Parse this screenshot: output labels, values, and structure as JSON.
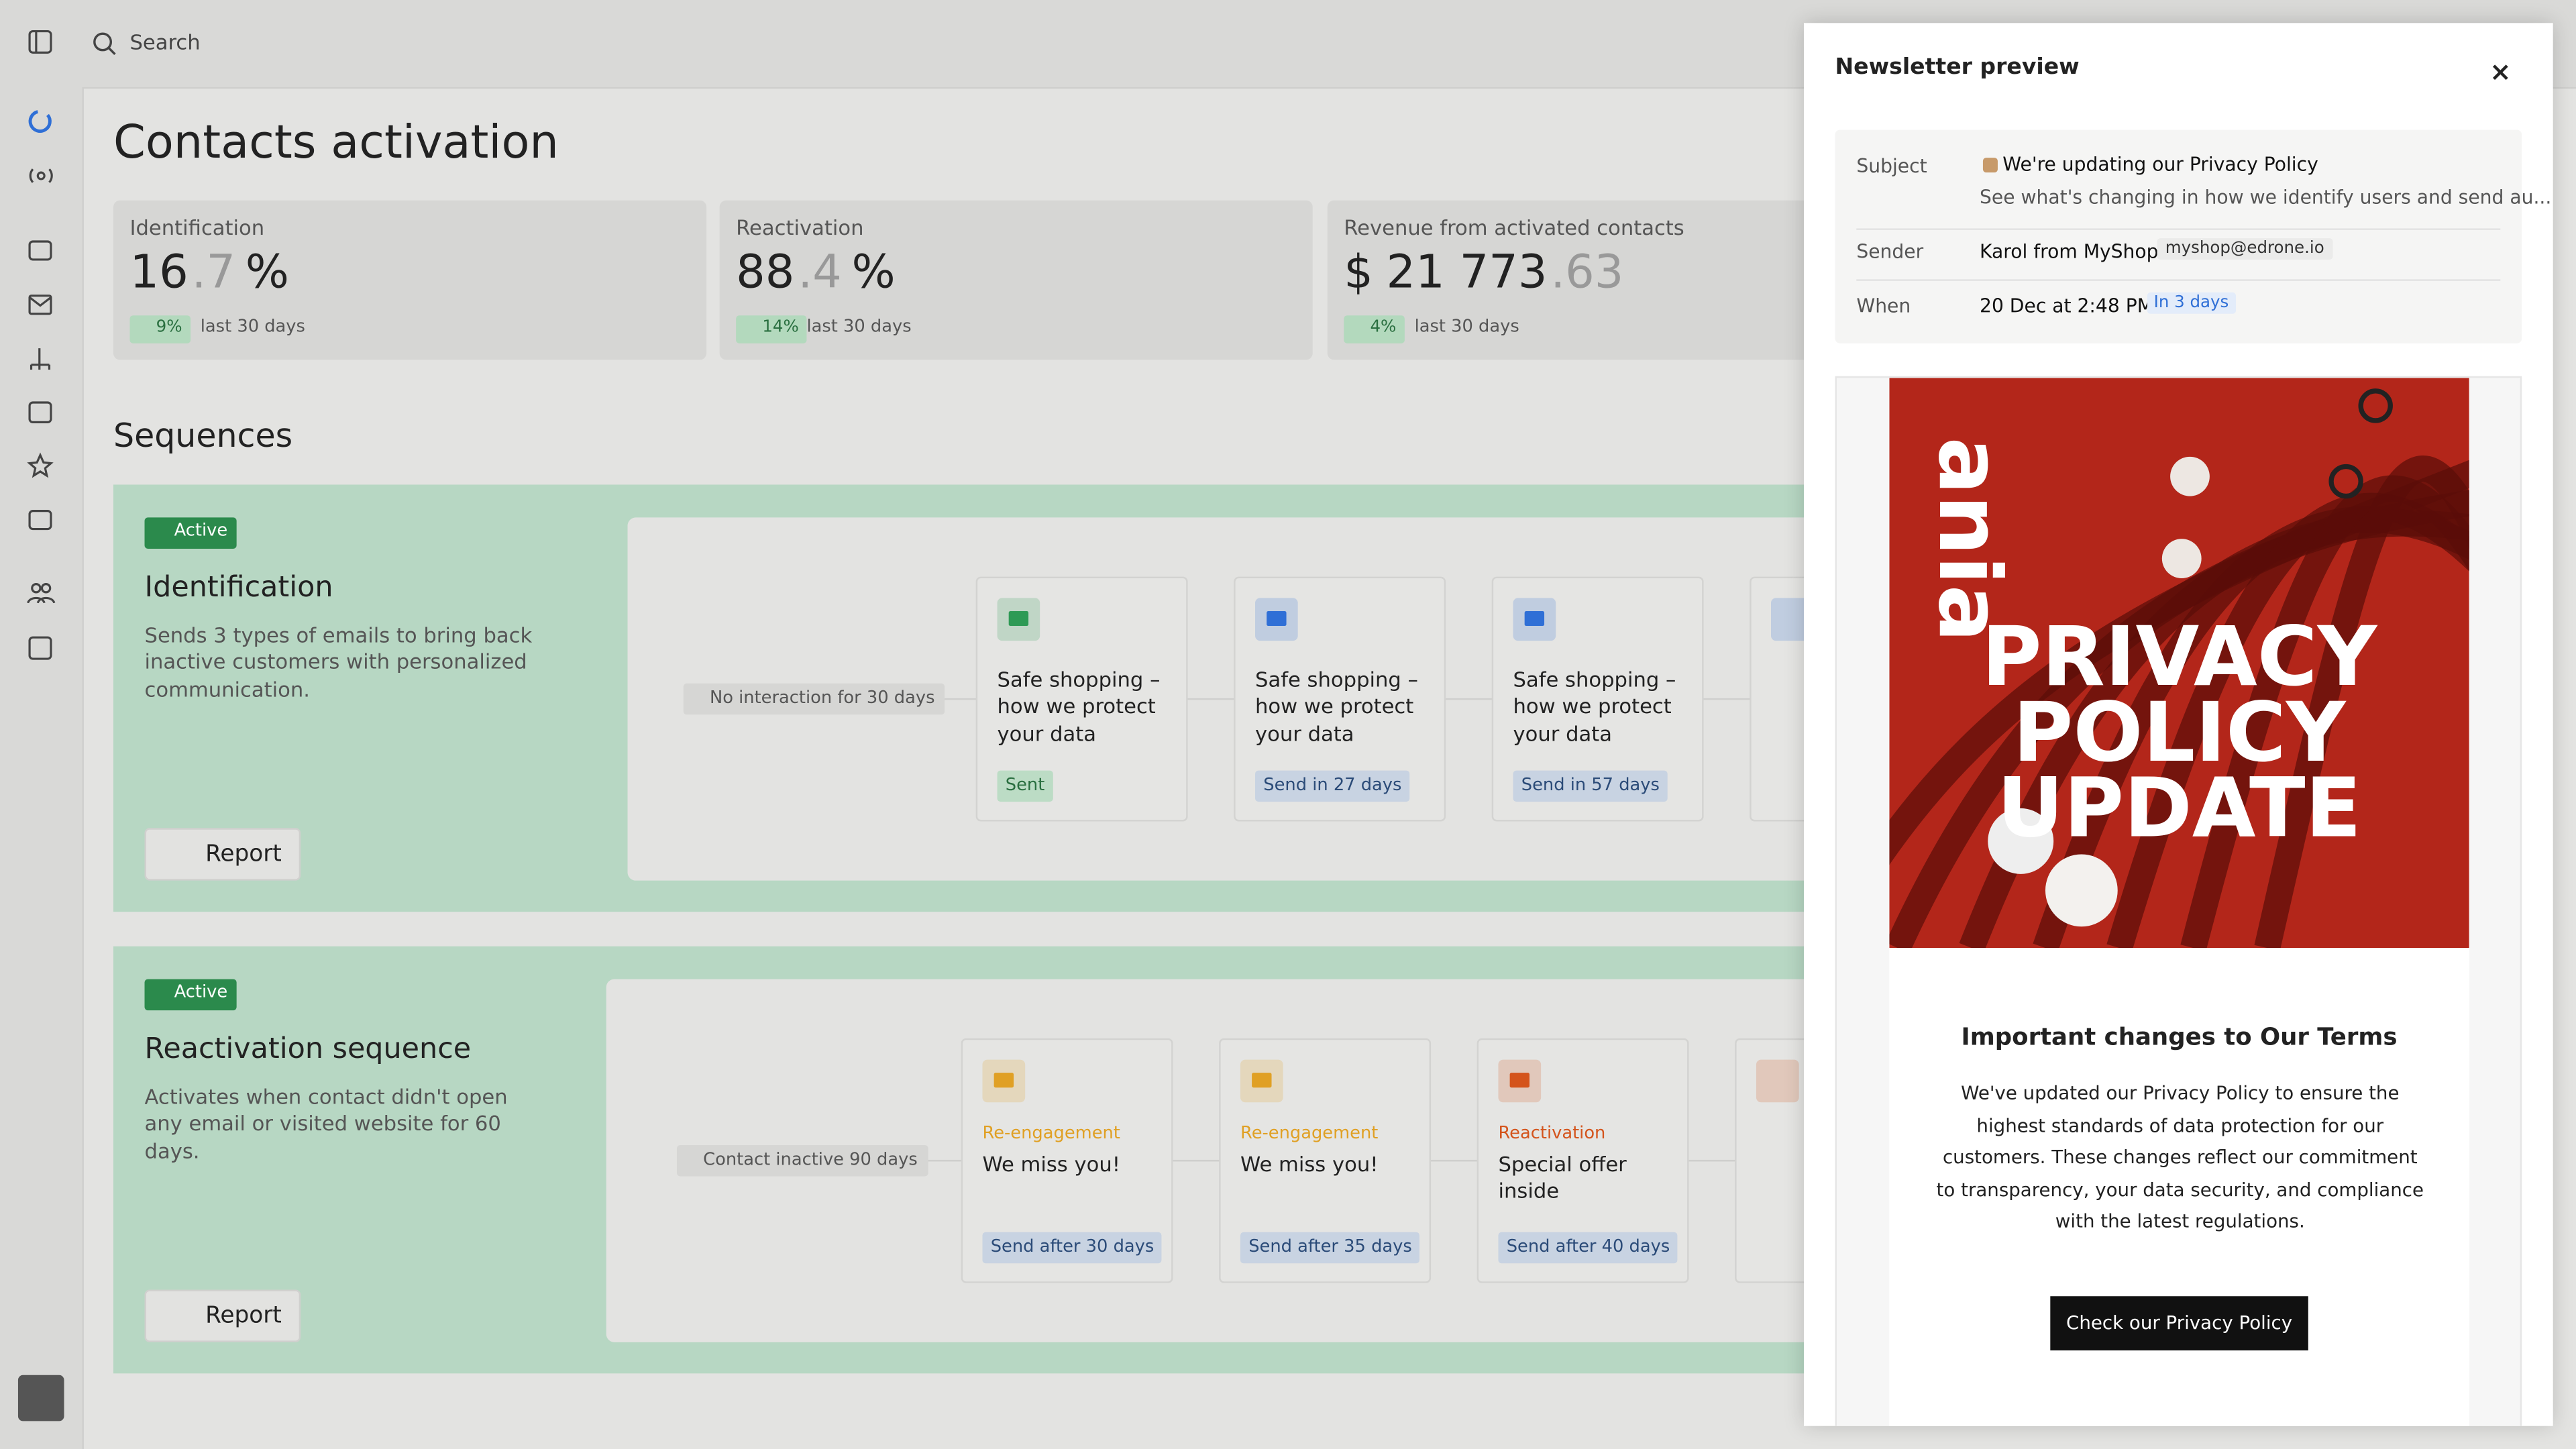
{
  "search_placeholder": "Search",
  "page": {
    "title": "Contacts activation",
    "metrics": [
      {
        "label": "Identification",
        "value": "16",
        "decimals": ".7",
        "unit": "%",
        "change": "9%",
        "period": "last 30 days"
      },
      {
        "label": "Reactivation",
        "value": "88",
        "decimals": ".4",
        "unit": "%",
        "change": "14%",
        "period": "last 30 days"
      },
      {
        "label": "Revenue from activated contacts",
        "currency": "$",
        "value": "21 773",
        "decimals": ".63",
        "change": "4%",
        "period": "last 30 days"
      }
    ],
    "sequences_title": "Sequences",
    "sequences": [
      {
        "status": "Active",
        "name": "Identification",
        "description": "Sends 3 types of emails to bring back inactive customers with personalized communication.",
        "report": "Report",
        "trigger": "No interaction for 30 days",
        "steps": [
          {
            "title": "Safe shopping – how we protect your data",
            "status": "Sent",
            "icon_color": "#2e9a55"
          },
          {
            "title": "Safe shopping – how we protect your data",
            "status": "Send in 27 days",
            "icon_color": "#2f6fd6"
          },
          {
            "title": "Safe shopping – how we protect your data",
            "status": "Send in 57 days",
            "icon_color": "#2f6fd6"
          }
        ]
      },
      {
        "status": "Active",
        "name": "Reactivation sequence",
        "description": "Activates when contact didn't open any email or visited website for 60 days.",
        "report": "Report",
        "trigger": "Contact inactive 90 days",
        "steps": [
          {
            "tag": "Re-engagement",
            "title": "We miss you!",
            "status": "Send after 30 days",
            "icon_color": "#e0a024"
          },
          {
            "tag": "Re-engagement",
            "title": "We miss you!",
            "status": "Send after 35 days",
            "icon_color": "#e0a024"
          },
          {
            "tag": "Reactivation",
            "title": "Special offer inside",
            "status": "Send after 40 days",
            "icon_color": "#d4541c"
          }
        ]
      }
    ]
  },
  "preview": {
    "title": "Newsletter preview",
    "subject_label": "Subject",
    "subject": "We're updating our Privacy Policy",
    "preheader": "See what's changing in how we identify users and send au...",
    "sender_label": "Sender",
    "sender": "Karol from MyShop",
    "sender_email": "myshop@edrone.io",
    "when_label": "When",
    "when": "20 Dec at 2:48 PM",
    "when_badge": "In 3 days",
    "brand": "ania",
    "image_headline": [
      "PRIVACY",
      "POLICY",
      "UPDATE"
    ],
    "heading": "Important changes to Our Terms",
    "body": "We've updated our Privacy Policy to ensure the highest standards of data protection for our customers. These changes reflect our commitment to transparency, your data security, and compliance with the latest regulations.",
    "button": "Check our Privacy Policy"
  }
}
